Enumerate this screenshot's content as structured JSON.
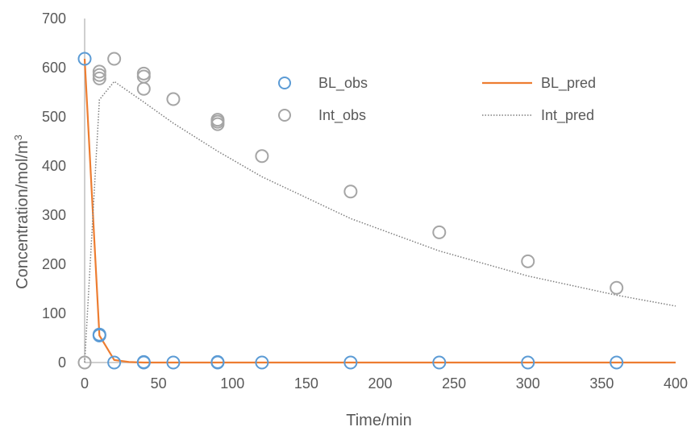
{
  "chart_data": {
    "type": "scatter",
    "xlabel": "Time/min",
    "ylabel_main": "Concentration/mol/m",
    "ylabel_sup": "3",
    "xlim": [
      0,
      400
    ],
    "ylim": [
      0,
      700
    ],
    "xticks": [
      0,
      50,
      100,
      150,
      200,
      250,
      300,
      350,
      400
    ],
    "yticks": [
      0,
      100,
      200,
      300,
      400,
      500,
      600,
      700
    ],
    "grid": false,
    "legend_position": "top-right",
    "series": [
      {
        "name": "BL_obs",
        "kind": "marker",
        "color": "#5B9BD5",
        "points": [
          [
            0,
            618
          ],
          [
            10,
            55
          ],
          [
            10,
            57
          ],
          [
            20,
            0
          ],
          [
            40,
            0
          ],
          [
            40,
            1
          ],
          [
            60,
            0
          ],
          [
            90,
            0
          ],
          [
            90,
            1
          ],
          [
            120,
            0
          ],
          [
            180,
            0
          ],
          [
            240,
            0
          ],
          [
            300,
            0
          ],
          [
            360,
            0
          ]
        ]
      },
      {
        "name": "BL_pred",
        "kind": "line",
        "style": "solid",
        "color": "#ED7D31",
        "points": [
          [
            0,
            618
          ],
          [
            10,
            55
          ],
          [
            20,
            5
          ],
          [
            30,
            1
          ],
          [
            40,
            0
          ],
          [
            60,
            0
          ],
          [
            90,
            0
          ],
          [
            120,
            0
          ],
          [
            180,
            0
          ],
          [
            240,
            0
          ],
          [
            300,
            0
          ],
          [
            360,
            0
          ],
          [
            400,
            0
          ]
        ]
      },
      {
        "name": "Int_obs",
        "kind": "marker",
        "color": "#A5A5A5",
        "points": [
          [
            0,
            0
          ],
          [
            10,
            578
          ],
          [
            10,
            585
          ],
          [
            10,
            592
          ],
          [
            20,
            618
          ],
          [
            40,
            557
          ],
          [
            40,
            582
          ],
          [
            40,
            588
          ],
          [
            60,
            536
          ],
          [
            90,
            485
          ],
          [
            90,
            490
          ],
          [
            90,
            494
          ],
          [
            120,
            420
          ],
          [
            180,
            348
          ],
          [
            240,
            265
          ],
          [
            300,
            206
          ],
          [
            360,
            152
          ]
        ]
      },
      {
        "name": "Int_pred",
        "kind": "line",
        "style": "dotted",
        "color": "#7F7F7F",
        "points": [
          [
            0,
            0
          ],
          [
            10,
            535
          ],
          [
            20,
            572
          ],
          [
            40,
            530
          ],
          [
            60,
            487
          ],
          [
            90,
            430
          ],
          [
            120,
            378
          ],
          [
            180,
            293
          ],
          [
            240,
            227
          ],
          [
            300,
            176
          ],
          [
            360,
            137
          ],
          [
            400,
            115
          ]
        ]
      }
    ]
  }
}
